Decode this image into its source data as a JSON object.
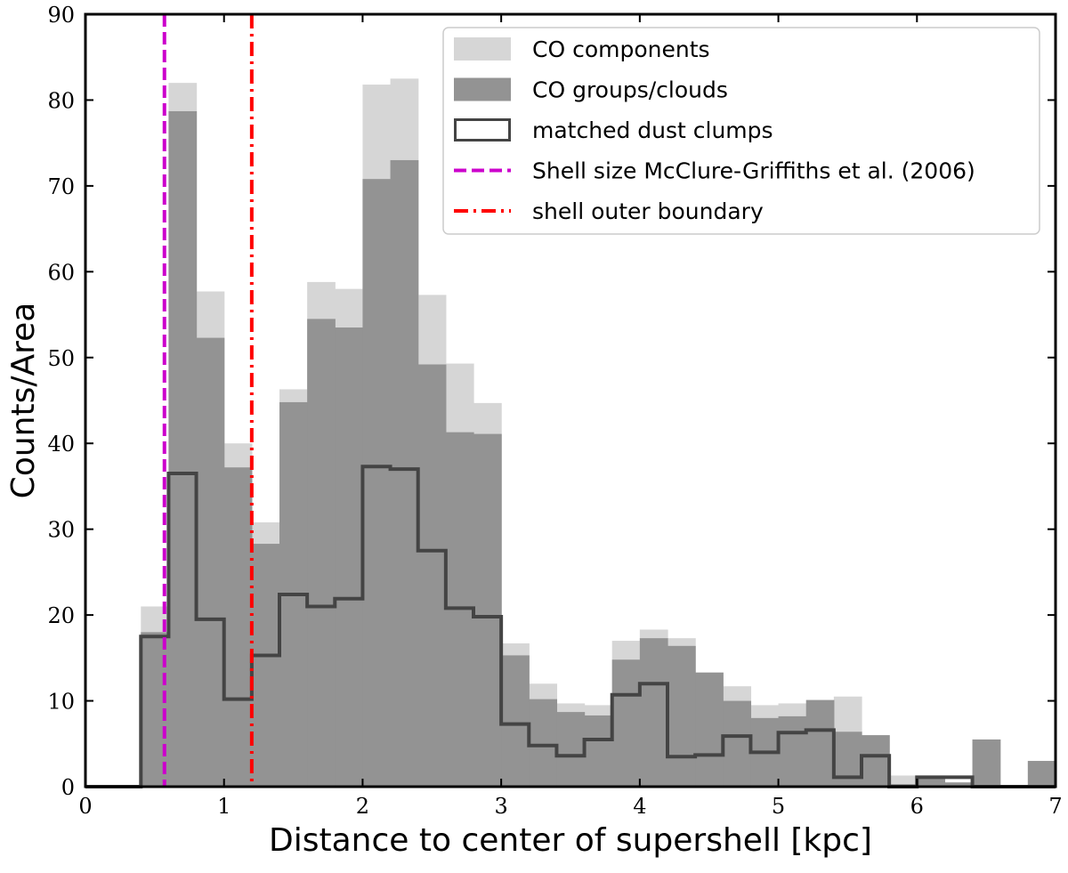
{
  "chart_data": {
    "type": "bar",
    "title": "",
    "xlabel": "Distance to center of supershell [kpc]",
    "ylabel": "Counts/Area",
    "xlim": [
      0,
      7
    ],
    "ylim": [
      0,
      90
    ],
    "xticks": [
      0,
      1,
      2,
      3,
      4,
      5,
      6,
      7
    ],
    "yticks": [
      0,
      10,
      20,
      30,
      40,
      50,
      60,
      70,
      80,
      90
    ],
    "grid": false,
    "legend_position": "top-right",
    "bin_edges": [
      0.0,
      0.2,
      0.4,
      0.6,
      0.8,
      1.0,
      1.2,
      1.4,
      1.6,
      1.8,
      2.0,
      2.2,
      2.4,
      2.6,
      2.8,
      3.0,
      3.2,
      3.4,
      3.6,
      3.8,
      4.0,
      4.2,
      4.4,
      4.6,
      4.8,
      5.0,
      5.2,
      5.4,
      5.6,
      5.8,
      6.0,
      6.2,
      6.4,
      6.6,
      6.8,
      7.0
    ],
    "series": [
      {
        "name": "CO components",
        "style": "filled",
        "color": "#d6d6d6",
        "values": [
          0,
          0,
          21,
          82,
          57.7,
          40,
          30.8,
          46.3,
          58.8,
          58,
          81.8,
          82.5,
          57.3,
          49.3,
          44.7,
          16.7,
          12,
          9.7,
          9.5,
          17,
          18.3,
          17.3,
          13.3,
          11.7,
          9.5,
          9.7,
          9.7,
          10.5,
          6,
          1.3,
          1.3,
          0,
          5.5,
          0,
          3
        ]
      },
      {
        "name": "CO groups/clouds",
        "style": "filled",
        "color": "#939393",
        "values": [
          0,
          0,
          18,
          78.7,
          52.3,
          37.2,
          28.3,
          44.8,
          54.5,
          53.5,
          70.8,
          73,
          49.2,
          41.3,
          41.1,
          15.3,
          10.2,
          8.7,
          8.3,
          14.8,
          17.3,
          16.4,
          13.3,
          10,
          8,
          8.2,
          10.1,
          6.4,
          6,
          0.3,
          1,
          0.5,
          5.5,
          0,
          3
        ]
      },
      {
        "name": "matched dust clumps",
        "style": "step",
        "color": "#444444",
        "values": [
          0,
          0,
          17.5,
          36.5,
          19.5,
          10.2,
          15.3,
          22.4,
          21,
          21.9,
          37.3,
          37,
          27.5,
          20.8,
          19.8,
          7.3,
          4.8,
          3.6,
          5.5,
          10.7,
          12,
          3.5,
          3.7,
          5.9,
          4,
          6.3,
          6.6,
          1.1,
          3.6,
          0,
          1.1,
          1.1,
          0,
          0,
          0
        ]
      }
    ],
    "vlines": [
      {
        "name": "Shell size McClure-Griffiths et al. (2006)",
        "x": 0.57,
        "color": "#cc00cc",
        "style": "dashed"
      },
      {
        "name": "shell outer boundary",
        "x": 1.2,
        "color": "#ff0000",
        "style": "dashdot"
      }
    ]
  }
}
